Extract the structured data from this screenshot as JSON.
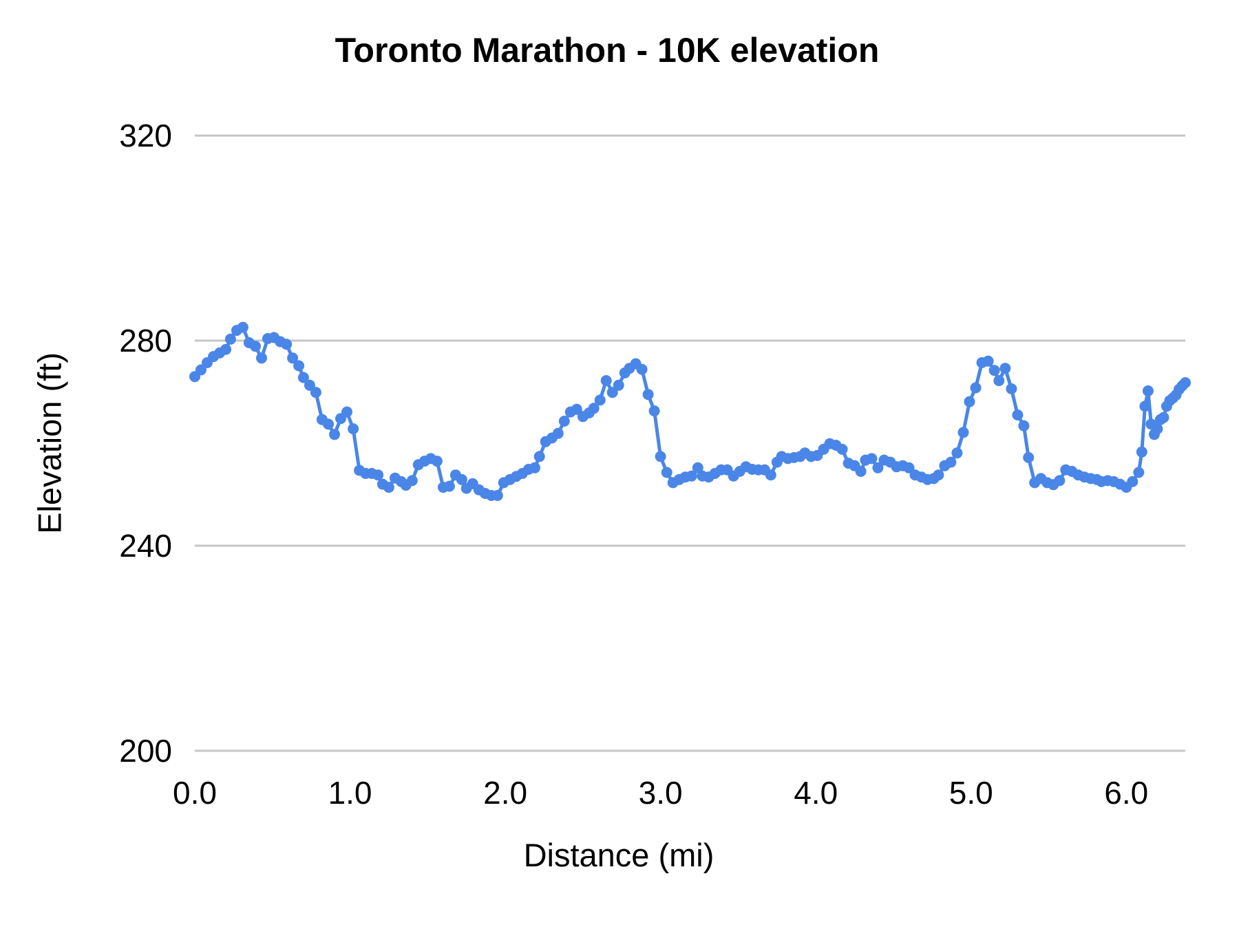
{
  "title": "Toronto Marathon - 10K elevation",
  "axes": {
    "x_title": "Distance (mi)",
    "y_title": "Elevation (ft)"
  },
  "chart_data": {
    "type": "line",
    "title": "Toronto Marathon - 10K elevation",
    "xlabel": "Distance (mi)",
    "ylabel": "Elevation (ft)",
    "xlim": [
      0,
      6.38
    ],
    "ylim": [
      200,
      320
    ],
    "xticks": [
      0,
      1,
      2,
      3,
      4,
      5,
      6
    ],
    "xtick_labels": [
      "0.0",
      "1.0",
      "2.0",
      "3.0",
      "4.0",
      "5.0",
      "6.0"
    ],
    "yticks": [
      200,
      240,
      280,
      320
    ],
    "ytick_labels": [
      "200",
      "240",
      "280",
      "320"
    ],
    "grid": "horizontal-only",
    "legend": "none",
    "series_name": "Elevation",
    "series_color": "#4a86e8",
    "grid_color": "#c6c6c6",
    "marker": "circle",
    "marker_radius": 8,
    "line_width": 5,
    "points": [
      [
        0.0,
        273.0
      ],
      [
        0.04,
        274.3
      ],
      [
        0.08,
        275.7
      ],
      [
        0.12,
        276.9
      ],
      [
        0.16,
        277.6
      ],
      [
        0.2,
        278.3
      ],
      [
        0.23,
        280.3
      ],
      [
        0.27,
        282.0
      ],
      [
        0.31,
        282.6
      ],
      [
        0.35,
        279.6
      ],
      [
        0.39,
        278.9
      ],
      [
        0.43,
        276.6
      ],
      [
        0.47,
        280.4
      ],
      [
        0.51,
        280.6
      ],
      [
        0.55,
        279.8
      ],
      [
        0.59,
        279.3
      ],
      [
        0.63,
        276.6
      ],
      [
        0.67,
        275.1
      ],
      [
        0.7,
        272.8
      ],
      [
        0.74,
        271.3
      ],
      [
        0.78,
        269.9
      ],
      [
        0.82,
        264.6
      ],
      [
        0.86,
        263.7
      ],
      [
        0.9,
        261.7
      ],
      [
        0.94,
        264.8
      ],
      [
        0.98,
        266.1
      ],
      [
        1.02,
        262.8
      ],
      [
        1.06,
        254.7
      ],
      [
        1.1,
        254.1
      ],
      [
        1.14,
        254.1
      ],
      [
        1.18,
        253.8
      ],
      [
        1.21,
        252.0
      ],
      [
        1.25,
        251.4
      ],
      [
        1.29,
        253.2
      ],
      [
        1.33,
        252.5
      ],
      [
        1.36,
        251.8
      ],
      [
        1.4,
        252.7
      ],
      [
        1.44,
        255.8
      ],
      [
        1.48,
        256.5
      ],
      [
        1.52,
        257.0
      ],
      [
        1.56,
        256.5
      ],
      [
        1.6,
        251.4
      ],
      [
        1.64,
        251.6
      ],
      [
        1.68,
        253.8
      ],
      [
        1.72,
        252.9
      ],
      [
        1.75,
        251.2
      ],
      [
        1.79,
        252.1
      ],
      [
        1.83,
        250.9
      ],
      [
        1.87,
        250.2
      ],
      [
        1.91,
        249.8
      ],
      [
        1.95,
        249.8
      ],
      [
        1.99,
        252.3
      ],
      [
        2.03,
        252.9
      ],
      [
        2.07,
        253.5
      ],
      [
        2.11,
        254.1
      ],
      [
        2.15,
        254.9
      ],
      [
        2.19,
        255.2
      ],
      [
        2.22,
        257.4
      ],
      [
        2.26,
        260.3
      ],
      [
        2.3,
        261.0
      ],
      [
        2.34,
        261.9
      ],
      [
        2.38,
        264.3
      ],
      [
        2.42,
        266.1
      ],
      [
        2.46,
        266.6
      ],
      [
        2.5,
        265.2
      ],
      [
        2.54,
        265.9
      ],
      [
        2.57,
        266.8
      ],
      [
        2.61,
        268.4
      ],
      [
        2.65,
        272.2
      ],
      [
        2.69,
        269.9
      ],
      [
        2.73,
        271.3
      ],
      [
        2.77,
        273.7
      ],
      [
        2.8,
        274.6
      ],
      [
        2.84,
        275.5
      ],
      [
        2.88,
        274.4
      ],
      [
        2.92,
        269.5
      ],
      [
        2.96,
        266.3
      ],
      [
        3.0,
        257.4
      ],
      [
        3.04,
        254.3
      ],
      [
        3.08,
        252.3
      ],
      [
        3.12,
        252.9
      ],
      [
        3.16,
        253.4
      ],
      [
        3.2,
        253.6
      ],
      [
        3.24,
        255.2
      ],
      [
        3.27,
        253.6
      ],
      [
        3.31,
        253.4
      ],
      [
        3.35,
        254.1
      ],
      [
        3.39,
        254.8
      ],
      [
        3.43,
        254.8
      ],
      [
        3.47,
        253.6
      ],
      [
        3.51,
        254.5
      ],
      [
        3.55,
        255.4
      ],
      [
        3.59,
        254.9
      ],
      [
        3.63,
        254.8
      ],
      [
        3.67,
        254.8
      ],
      [
        3.71,
        253.8
      ],
      [
        3.75,
        256.3
      ],
      [
        3.78,
        257.4
      ],
      [
        3.82,
        257.0
      ],
      [
        3.86,
        257.2
      ],
      [
        3.9,
        257.4
      ],
      [
        3.93,
        258.1
      ],
      [
        3.97,
        257.4
      ],
      [
        4.01,
        257.6
      ],
      [
        4.05,
        258.8
      ],
      [
        4.09,
        259.9
      ],
      [
        4.13,
        259.6
      ],
      [
        4.17,
        258.8
      ],
      [
        4.21,
        256.1
      ],
      [
        4.25,
        255.6
      ],
      [
        4.29,
        254.5
      ],
      [
        4.32,
        256.7
      ],
      [
        4.36,
        257.0
      ],
      [
        4.4,
        255.2
      ],
      [
        4.44,
        256.7
      ],
      [
        4.48,
        256.3
      ],
      [
        4.52,
        255.4
      ],
      [
        4.56,
        255.6
      ],
      [
        4.6,
        255.2
      ],
      [
        4.64,
        253.8
      ],
      [
        4.68,
        253.4
      ],
      [
        4.72,
        252.9
      ],
      [
        4.76,
        253.1
      ],
      [
        4.79,
        253.8
      ],
      [
        4.83,
        255.6
      ],
      [
        4.87,
        256.3
      ],
      [
        4.91,
        258.1
      ],
      [
        4.95,
        262.1
      ],
      [
        4.99,
        268.1
      ],
      [
        5.03,
        270.8
      ],
      [
        5.07,
        275.7
      ],
      [
        5.11,
        276.0
      ],
      [
        5.15,
        274.2
      ],
      [
        5.18,
        272.2
      ],
      [
        5.22,
        274.6
      ],
      [
        5.26,
        270.6
      ],
      [
        5.3,
        265.5
      ],
      [
        5.34,
        263.4
      ],
      [
        5.37,
        257.2
      ],
      [
        5.41,
        252.3
      ],
      [
        5.45,
        253.1
      ],
      [
        5.49,
        252.3
      ],
      [
        5.53,
        251.9
      ],
      [
        5.57,
        252.7
      ],
      [
        5.61,
        254.8
      ],
      [
        5.65,
        254.5
      ],
      [
        5.69,
        253.8
      ],
      [
        5.73,
        253.4
      ],
      [
        5.77,
        253.1
      ],
      [
        5.81,
        252.9
      ],
      [
        5.84,
        252.5
      ],
      [
        5.88,
        252.7
      ],
      [
        5.92,
        252.5
      ],
      [
        5.96,
        252.0
      ],
      [
        6.0,
        251.4
      ],
      [
        6.04,
        252.5
      ],
      [
        6.08,
        254.3
      ],
      [
        6.1,
        258.3
      ],
      [
        6.12,
        267.2
      ],
      [
        6.14,
        270.2
      ],
      [
        6.16,
        263.7
      ],
      [
        6.18,
        261.7
      ],
      [
        6.2,
        262.8
      ],
      [
        6.22,
        264.6
      ],
      [
        6.24,
        265.0
      ],
      [
        6.26,
        267.2
      ],
      [
        6.28,
        268.3
      ],
      [
        6.3,
        268.8
      ],
      [
        6.32,
        269.4
      ],
      [
        6.34,
        270.5
      ],
      [
        6.36,
        271.2
      ],
      [
        6.38,
        271.8
      ]
    ]
  }
}
